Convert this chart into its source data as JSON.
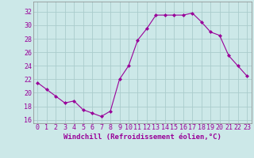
{
  "x": [
    0,
    1,
    2,
    3,
    4,
    5,
    6,
    7,
    8,
    9,
    10,
    11,
    12,
    13,
    14,
    15,
    16,
    17,
    18,
    19,
    20,
    21,
    22,
    23
  ],
  "y": [
    21.5,
    20.5,
    19.5,
    18.5,
    18.8,
    17.5,
    17.0,
    16.5,
    17.3,
    22.0,
    24.0,
    27.8,
    29.5,
    31.5,
    31.5,
    31.5,
    31.5,
    31.8,
    30.5,
    29.0,
    28.5,
    25.5,
    24.0,
    22.5
  ],
  "line_color": "#990099",
  "marker": "D",
  "marker_size": 2,
  "bg_color": "#cce8e8",
  "grid_color": "#aacccc",
  "xlabel": "Windchill (Refroidissement éolien,°C)",
  "xlabel_color": "#990099",
  "xlabel_fontsize": 6.5,
  "tick_color": "#990099",
  "tick_fontsize": 6,
  "ylim": [
    15.5,
    33.5
  ],
  "yticks": [
    16,
    18,
    20,
    22,
    24,
    26,
    28,
    30,
    32
  ],
  "xticks": [
    0,
    1,
    2,
    3,
    4,
    5,
    6,
    7,
    8,
    9,
    10,
    11,
    12,
    13,
    14,
    15,
    16,
    17,
    18,
    19,
    20,
    21,
    22,
    23
  ]
}
